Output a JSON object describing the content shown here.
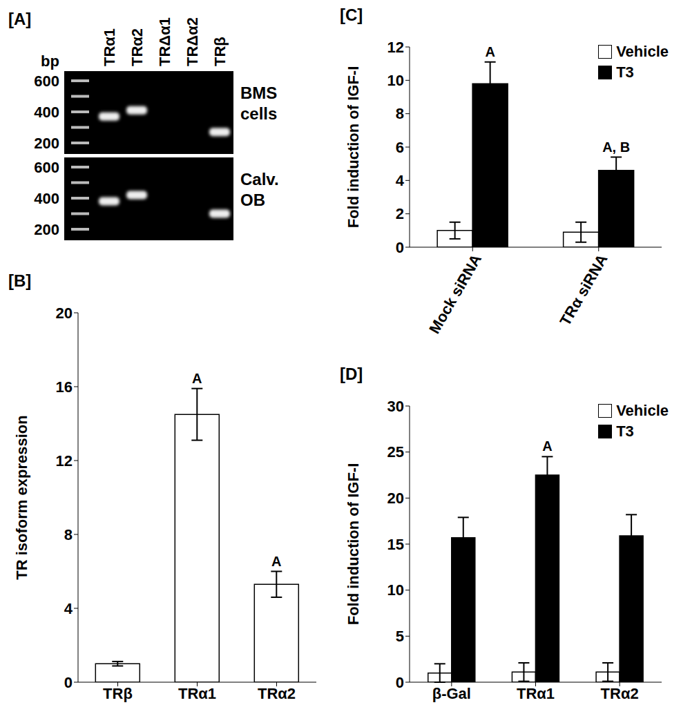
{
  "gel": {
    "title": "[A]",
    "lanes": [
      "TRα1",
      "TRα2",
      "TRΔα1",
      "TRΔα2",
      "TRβ"
    ],
    "bp_label": "bp",
    "bp_ticks": [
      600,
      400,
      200
    ],
    "ladder_bands": [
      600,
      500,
      400,
      300,
      200
    ],
    "rows": [
      {
        "label": "BMS cells",
        "bands": [
          370,
          410,
          null,
          null,
          270
        ]
      },
      {
        "label": "Calv. OB",
        "bands": [
          380,
          420,
          null,
          null,
          300
        ]
      }
    ]
  },
  "chart_data": [
    {
      "type": "bar",
      "title": "[B]",
      "categories": [
        "TRβ",
        "TRα1",
        "TRα2"
      ],
      "values": [
        1,
        14.5,
        5.3
      ],
      "errors": [
        0.12,
        1.4,
        0.7
      ],
      "color": "#ffffff",
      "y_label": "TR isoform expression",
      "ylim": [
        0,
        20
      ],
      "yticks": [
        0,
        4,
        8,
        12,
        16,
        20
      ],
      "annotations": [
        {
          "category": "TRα1",
          "text": "A"
        },
        {
          "category": "TRα2",
          "text": "A"
        }
      ]
    },
    {
      "type": "bar",
      "title": "[C]",
      "categories": [
        "Mock siRNA",
        "TRα siRNA"
      ],
      "series": [
        {
          "name": "Vehicle",
          "color": "#ffffff",
          "values": [
            1,
            0.9
          ],
          "errors": [
            0.5,
            0.6
          ]
        },
        {
          "name": "T3",
          "color": "#000000",
          "values": [
            9.8,
            4.6
          ],
          "errors": [
            1.3,
            0.8
          ]
        }
      ],
      "y_label": "Fold induction of IGF-I",
      "ylim": [
        0,
        12
      ],
      "yticks": [
        0,
        2,
        4,
        6,
        8,
        10,
        12
      ],
      "legend": "upper right",
      "annotations": [
        {
          "category": "Mock siRNA",
          "series": "T3",
          "text": "A"
        },
        {
          "category": "TRα siRNA",
          "series": "T3",
          "text": "A, B"
        }
      ]
    },
    {
      "type": "bar",
      "title": "[D]",
      "categories": [
        "β-Gal",
        "TRα1",
        "TRα2"
      ],
      "series": [
        {
          "name": "Vehicle",
          "color": "#ffffff",
          "values": [
            1,
            1.1,
            1.1
          ],
          "errors": [
            1,
            1,
            1
          ]
        },
        {
          "name": "T3",
          "color": "#000000",
          "values": [
            15.7,
            22.5,
            15.9
          ],
          "errors": [
            2.2,
            2,
            2.3
          ]
        }
      ],
      "y_label": "Fold induction of IGF-I",
      "ylim": [
        0,
        30
      ],
      "yticks": [
        0,
        5,
        10,
        15,
        20,
        25,
        30
      ],
      "legend": "upper right",
      "annotations": [
        {
          "category": "TRα1",
          "series": "T3",
          "text": "A"
        }
      ]
    }
  ]
}
